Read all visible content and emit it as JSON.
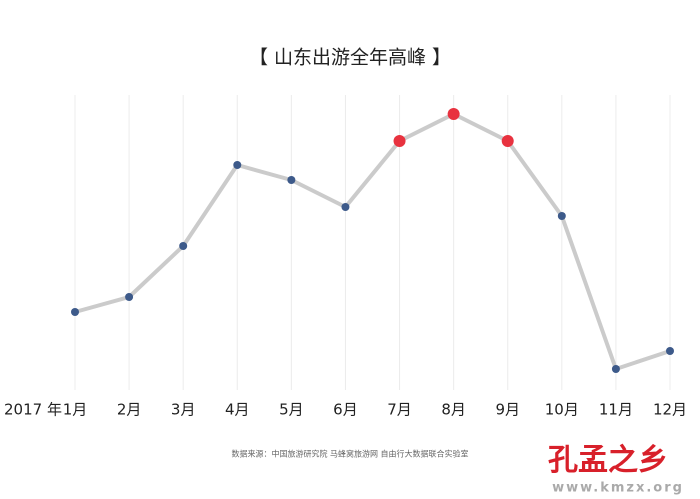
{
  "chart_data": {
    "type": "line",
    "title": "【 山东出游全年高峰 】",
    "year_label": "2017 年",
    "categories": [
      "1月",
      "2月",
      "3月",
      "4月",
      "5月",
      "6月",
      "7月",
      "8月",
      "9月",
      "10月",
      "11月",
      "12月"
    ],
    "values": [
      26,
      31,
      48,
      75,
      70,
      61,
      83,
      92,
      83,
      58,
      7,
      13
    ],
    "ylim": [
      0,
      100
    ],
    "line_color": "#cbcbcb",
    "point_colors": [
      "#3d5a8a",
      "#3d5a8a",
      "#3d5a8a",
      "#3d5a8a",
      "#3d5a8a",
      "#3d5a8a",
      "#e8323f",
      "#e8323f",
      "#e8323f",
      "#3d5a8a",
      "#3d5a8a",
      "#3d5a8a"
    ],
    "grid": true,
    "source": "数据来源：中国旅游研究院 马蜂窝旅游网 自由行大数据联合实验室"
  },
  "watermark": {
    "title": "孔孟之乡",
    "url": "www.kmzx.org"
  }
}
